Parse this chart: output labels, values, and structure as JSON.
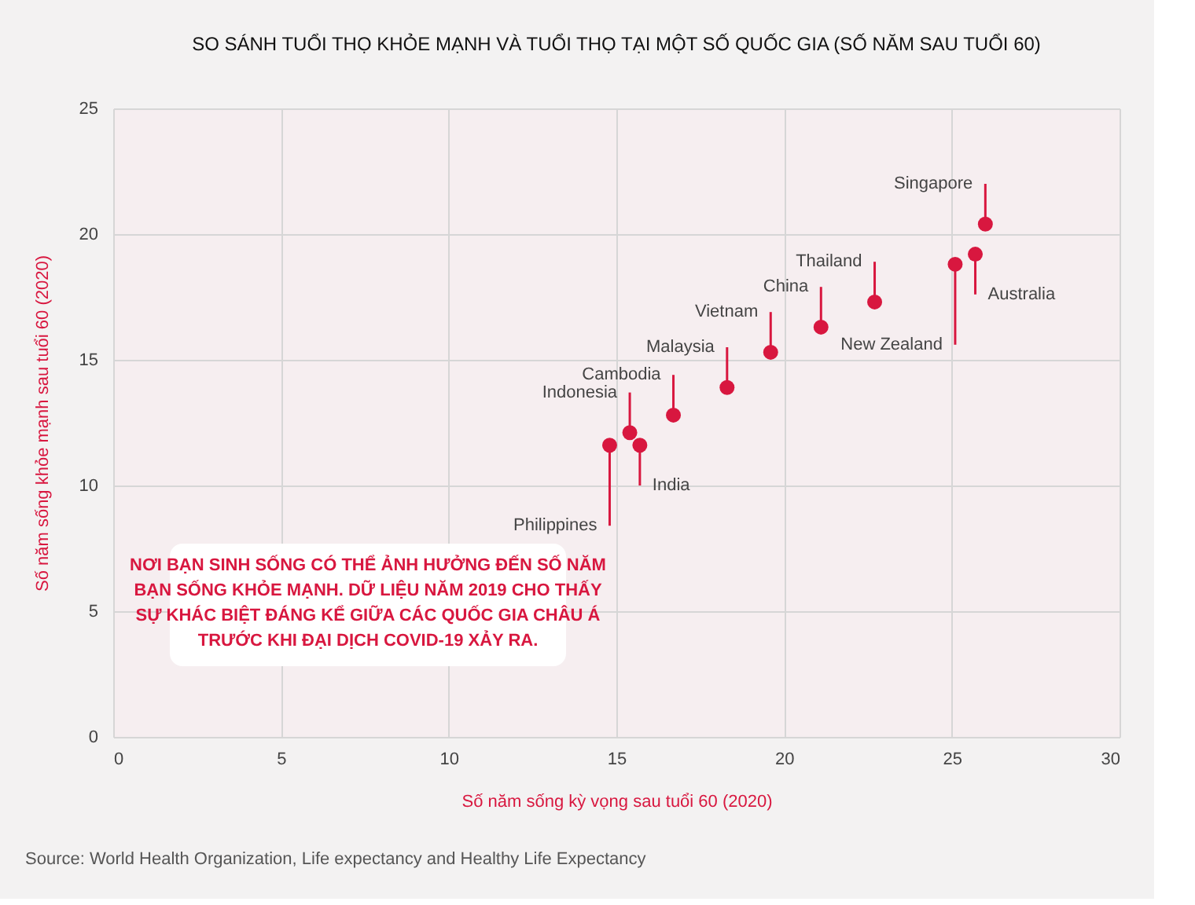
{
  "chart_data": {
    "type": "scatter",
    "title": "SO SÁNH TUỔI THỌ KHỎE MẠNH VÀ TUỔI THỌ TẠI MỘT SỐ QUỐC GIA (SỐ NĂM SAU TUỔI 60)",
    "xlabel": "Số năm sống kỳ vọng sau tuổi 60 (2020)",
    "ylabel": "Số năm sống khỏe mạnh sau tuổi 60 (2020)",
    "x": [
      14.8,
      15.4,
      15.7,
      16.7,
      18.3,
      19.6,
      21.1,
      22.7,
      25.1,
      25.7,
      26.0
    ],
    "series": [
      {
        "color": "#d8173f",
        "values": [
          11.6,
          12.1,
          11.6,
          12.8,
          13.9,
          15.3,
          16.3,
          17.3,
          18.8,
          19.2,
          20.4
        ]
      }
    ],
    "annotations": [
      {
        "text": "Philippines",
        "x": 14.8,
        "y": 11.6
      },
      {
        "text": "Indonesia",
        "x": 15.4,
        "y": 12.1
      },
      {
        "text": "India",
        "x": 15.7,
        "y": 11.6
      },
      {
        "text": "Cambodia",
        "x": 16.7,
        "y": 12.8
      },
      {
        "text": "Malaysia",
        "x": 18.3,
        "y": 13.9
      },
      {
        "text": "Vietnam",
        "x": 19.6,
        "y": 15.3
      },
      {
        "text": "China",
        "x": 21.1,
        "y": 16.3
      },
      {
        "text": "Thailand",
        "x": 22.7,
        "y": 17.3
      },
      {
        "text": "New Zealand",
        "x": 25.1,
        "y": 18.8
      },
      {
        "text": "Australia",
        "x": 25.7,
        "y": 19.2
      },
      {
        "text": "Singapore",
        "x": 26.0,
        "y": 20.4
      },
      "NƠI BẠN SINH SỐNG CÓ THỂ ẢNH HƯỞNG ĐẾN SỐ NĂM BẠN SỐNG KHỎE MẠNH. DỮ LIỆU NĂM 2019 CHO THẤY SỰ KHÁC BIỆT ĐÁNG KỂ GIỮA CÁC QUỐC GIA CHÂU Á TRƯỚC KHI ĐẠI DỊCH COVID-19 XẢY RA.",
      "Source: World Health Organization, Life expectancy and Healthy Life Expectancy"
    ],
    "xlim": [
      0,
      30
    ],
    "xticks": [
      0,
      5,
      10,
      15,
      20,
      25,
      30
    ],
    "ylim": [
      0,
      25
    ],
    "yticks": [
      0,
      5,
      10,
      15,
      20,
      25
    ],
    "grid": true,
    "marker": "circle"
  }
}
